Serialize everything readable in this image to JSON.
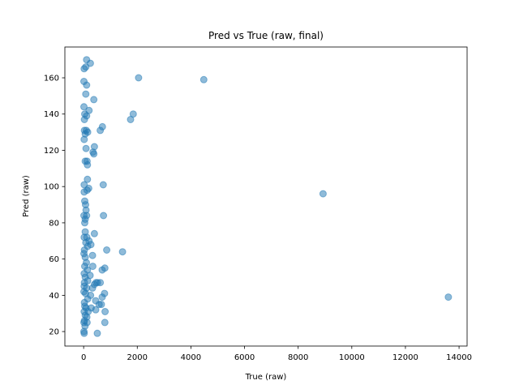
{
  "chart_data": {
    "type": "scatter",
    "title": "Pred vs True (raw, final)",
    "xlabel": "True (raw)",
    "ylabel": "Pred (raw)",
    "xlim": [
      -700,
      14300
    ],
    "ylim": [
      12,
      177
    ],
    "xticks": [
      0,
      2000,
      4000,
      6000,
      8000,
      10000,
      12000,
      14000
    ],
    "yticks": [
      20,
      40,
      60,
      80,
      100,
      120,
      140,
      160
    ],
    "grid": false,
    "legend": "none",
    "marker_color": "#1f77b4",
    "marker_alpha": 0.5,
    "points": [
      [
        110,
        170
      ],
      [
        250,
        168
      ],
      [
        80,
        166
      ],
      [
        20,
        165
      ],
      [
        10,
        158
      ],
      [
        110,
        156
      ],
      [
        80,
        151
      ],
      [
        380,
        148
      ],
      [
        10,
        144
      ],
      [
        200,
        142
      ],
      [
        40,
        140
      ],
      [
        110,
        139
      ],
      [
        30,
        137
      ],
      [
        700,
        133
      ],
      [
        620,
        131
      ],
      [
        30,
        131
      ],
      [
        100,
        131
      ],
      [
        150,
        130
      ],
      [
        60,
        129
      ],
      [
        20,
        126
      ],
      [
        400,
        122
      ],
      [
        90,
        121
      ],
      [
        350,
        119
      ],
      [
        380,
        118
      ],
      [
        60,
        114
      ],
      [
        130,
        114
      ],
      [
        140,
        112
      ],
      [
        140,
        104
      ],
      [
        20,
        101
      ],
      [
        730,
        101
      ],
      [
        190,
        99
      ],
      [
        130,
        98
      ],
      [
        20,
        97
      ],
      [
        40,
        92
      ],
      [
        70,
        90
      ],
      [
        90,
        87
      ],
      [
        10,
        84
      ],
      [
        110,
        84
      ],
      [
        60,
        82
      ],
      [
        40,
        80
      ],
      [
        740,
        84
      ],
      [
        60,
        75
      ],
      [
        120,
        72
      ],
      [
        20,
        72
      ],
      [
        200,
        70
      ],
      [
        80,
        69
      ],
      [
        150,
        67
      ],
      [
        30,
        65
      ],
      [
        270,
        68
      ],
      [
        400,
        74
      ],
      [
        10,
        63
      ],
      [
        60,
        61
      ],
      [
        330,
        62
      ],
      [
        860,
        65
      ],
      [
        1450,
        64
      ],
      [
        100,
        58
      ],
      [
        40,
        56
      ],
      [
        340,
        56
      ],
      [
        140,
        54
      ],
      [
        20,
        52
      ],
      [
        690,
        54
      ],
      [
        790,
        55
      ],
      [
        60,
        50
      ],
      [
        240,
        51
      ],
      [
        150,
        48
      ],
      [
        30,
        47
      ],
      [
        20,
        45
      ],
      [
        520,
        47
      ],
      [
        620,
        47
      ],
      [
        110,
        44
      ],
      [
        330,
        44
      ],
      [
        400,
        46
      ],
      [
        460,
        47
      ],
      [
        10,
        42
      ],
      [
        70,
        41
      ],
      [
        260,
        40
      ],
      [
        780,
        41
      ],
      [
        690,
        39
      ],
      [
        150,
        38
      ],
      [
        450,
        37
      ],
      [
        30,
        36
      ],
      [
        40,
        34
      ],
      [
        580,
        35
      ],
      [
        660,
        35
      ],
      [
        90,
        33
      ],
      [
        280,
        33
      ],
      [
        450,
        32
      ],
      [
        20,
        31
      ],
      [
        170,
        31
      ],
      [
        800,
        31
      ],
      [
        60,
        29
      ],
      [
        120,
        28
      ],
      [
        30,
        26
      ],
      [
        10,
        25
      ],
      [
        130,
        25
      ],
      [
        790,
        25
      ],
      [
        50,
        23
      ],
      [
        510,
        19
      ],
      [
        10,
        20
      ],
      [
        20,
        19
      ],
      [
        1750,
        137
      ],
      [
        1850,
        140
      ],
      [
        2050,
        160
      ],
      [
        4480,
        159
      ],
      [
        8930,
        96
      ],
      [
        13600,
        39
      ]
    ]
  }
}
